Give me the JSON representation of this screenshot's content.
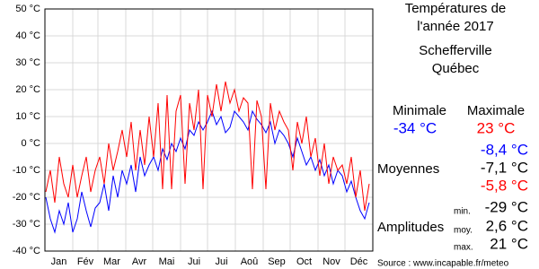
{
  "chart_data": {
    "type": "line",
    "title_lines": [
      "Températures de",
      "l'année 2017",
      "Schefferville",
      "Québec"
    ],
    "x": [
      1,
      6,
      11,
      16,
      21,
      26,
      31,
      36,
      41,
      46,
      51,
      56,
      61,
      66,
      71,
      76,
      81,
      86,
      91,
      96,
      101,
      106,
      111,
      116,
      121,
      126,
      131,
      136,
      141,
      146,
      151,
      156,
      161,
      166,
      171,
      176,
      181,
      186,
      191,
      196,
      201,
      206,
      211,
      216,
      221,
      226,
      231,
      236,
      241,
      246,
      251,
      256,
      261,
      266,
      271,
      276,
      281,
      286,
      291,
      296,
      301,
      306,
      311,
      316,
      321,
      326,
      331,
      336,
      341,
      346,
      351,
      356,
      361
    ],
    "series": [
      {
        "name": "Minimale",
        "color": "#0000ff",
        "values": [
          -20,
          -28,
          -33,
          -25,
          -30,
          -22,
          -33,
          -28,
          -18,
          -25,
          -31,
          -24,
          -22,
          -15,
          -25,
          -12,
          -20,
          -10,
          -15,
          -8,
          -18,
          -5,
          -12,
          -8,
          -5,
          -10,
          -2,
          -6,
          0,
          -3,
          2,
          -2,
          5,
          3,
          8,
          5,
          8,
          12,
          7,
          10,
          4,
          6,
          12,
          10,
          8,
          5,
          12,
          9,
          7,
          4,
          8,
          0,
          5,
          3,
          0,
          -5,
          2,
          -3,
          -8,
          -5,
          -10,
          -6,
          -12,
          -8,
          -15,
          -10,
          -12,
          -18,
          -14,
          -20,
          -25,
          -28,
          -22
        ]
      },
      {
        "name": "Maximale",
        "color": "#ff0000",
        "values": [
          -18,
          -10,
          -22,
          -5,
          -15,
          -20,
          -8,
          -20,
          -12,
          -5,
          -18,
          -10,
          -5,
          -15,
          0,
          -10,
          -3,
          5,
          -5,
          8,
          -10,
          5,
          -8,
          10,
          -5,
          15,
          -17,
          18,
          -17,
          12,
          18,
          -15,
          15,
          5,
          20,
          -17,
          18,
          10,
          22,
          12,
          23,
          15,
          20,
          12,
          17,
          15,
          -17,
          16,
          10,
          -17,
          15,
          5,
          12,
          8,
          5,
          -10,
          8,
          0,
          10,
          -5,
          2,
          -12,
          0,
          -15,
          -5,
          -10,
          -8,
          -15,
          -5,
          -20,
          -10,
          -25,
          -15
        ]
      }
    ],
    "xlim": [
      0,
      365
    ],
    "xticks": [
      {
        "value": 15.5,
        "label": "Jan"
      },
      {
        "value": 45,
        "label": "Fév"
      },
      {
        "value": 74.5,
        "label": "Mar"
      },
      {
        "value": 105,
        "label": "Avr"
      },
      {
        "value": 135.5,
        "label": "Mai"
      },
      {
        "value": 166,
        "label": "Jui"
      },
      {
        "value": 196.5,
        "label": "Jui"
      },
      {
        "value": 227.5,
        "label": "Aoû"
      },
      {
        "value": 258,
        "label": "Sep"
      },
      {
        "value": 288.5,
        "label": "Oct"
      },
      {
        "value": 319,
        "label": "Nov"
      },
      {
        "value": 349.5,
        "label": "Déc"
      }
    ],
    "xgrid": [
      31,
      59,
      90,
      120,
      151,
      181,
      212,
      243,
      273,
      304,
      334
    ],
    "ylim": [
      -40,
      50
    ],
    "yticks": [
      {
        "value": -40,
        "label": "-40 °C"
      },
      {
        "value": -30,
        "label": "-30 °C"
      },
      {
        "value": -20,
        "label": "-20 °C"
      },
      {
        "value": -10,
        "label": "-10 °C"
      },
      {
        "value": 0,
        "label": "0 °C"
      },
      {
        "value": 10,
        "label": "10 °C"
      },
      {
        "value": 20,
        "label": "20 °C"
      },
      {
        "value": 30,
        "label": "30 °C"
      },
      {
        "value": 40,
        "label": "40 °C"
      },
      {
        "value": 50,
        "label": "50 °C"
      }
    ],
    "grid": true,
    "stats": {
      "min_header": "Minimale",
      "max_header": "Maximale",
      "min_value": "-34 °C",
      "max_value": "23 °C",
      "avg_label": "Moyennes",
      "avg_min": "-8,4 °C",
      "avg_mean": "-7,1 °C",
      "avg_max": "-5,8 °C",
      "amp_label": "Amplitudes",
      "amp_min_label": "min.",
      "amp_min": "-29 °C",
      "amp_moy_label": "moy.",
      "amp_moy": "2,6 °C",
      "amp_max_label": "max.",
      "amp_max": "21 °C"
    },
    "source": "Source : www.incapable.fr/meteo"
  }
}
